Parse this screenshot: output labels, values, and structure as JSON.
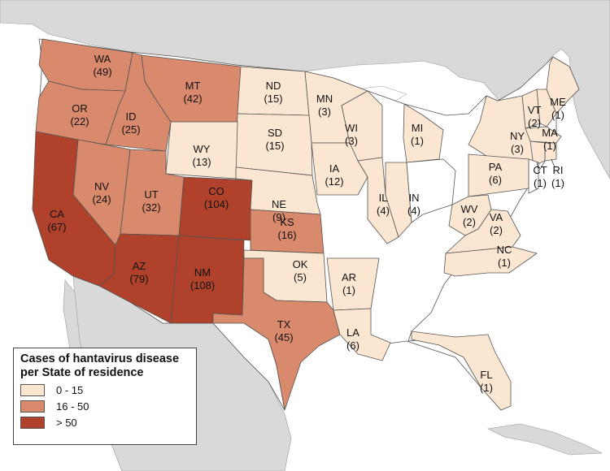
{
  "colors": {
    "low": "#fbe6d2",
    "mid": "#d98a6c",
    "high": "#b0422b",
    "none": "#ffffff",
    "outside": "#d9d9d9",
    "water": "#ffffff"
  },
  "legend": {
    "title_line1": "Cases of hantavirus disease",
    "title_line2": "per State of residence",
    "ranges": [
      {
        "label": "0 - 15",
        "class": "low"
      },
      {
        "label": "16 - 50",
        "class": "mid"
      },
      {
        "label": "> 50",
        "class": "high"
      }
    ]
  },
  "states": [
    {
      "abbr": "WA",
      "cases": "(49)",
      "class": "mid"
    },
    {
      "abbr": "OR",
      "cases": "(22)",
      "class": "mid"
    },
    {
      "abbr": "ID",
      "cases": "(25)",
      "class": "mid"
    },
    {
      "abbr": "MT",
      "cases": "(42)",
      "class": "mid"
    },
    {
      "abbr": "ND",
      "cases": "(15)",
      "class": "low"
    },
    {
      "abbr": "MN",
      "cases": "(3)",
      "class": "low"
    },
    {
      "abbr": "WI",
      "cases": "(3)",
      "class": "low"
    },
    {
      "abbr": "MI",
      "cases": "(1)",
      "class": "low"
    },
    {
      "abbr": "ME",
      "cases": "(1)",
      "class": "low"
    },
    {
      "abbr": "VT",
      "cases": "(2)",
      "class": "low"
    },
    {
      "abbr": "NY",
      "cases": "(3)",
      "class": "low"
    },
    {
      "abbr": "MA",
      "cases": "(1)",
      "class": "low"
    },
    {
      "abbr": "CT",
      "cases": "(1)",
      "class": "low"
    },
    {
      "abbr": "RI",
      "cases": "(1)",
      "class": "low"
    },
    {
      "abbr": "SD",
      "cases": "(15)",
      "class": "low"
    },
    {
      "abbr": "WY",
      "cases": "(13)",
      "class": "low"
    },
    {
      "abbr": "NV",
      "cases": "(24)",
      "class": "mid"
    },
    {
      "abbr": "UT",
      "cases": "(32)",
      "class": "mid"
    },
    {
      "abbr": "CO",
      "cases": "(104)",
      "class": "high"
    },
    {
      "abbr": "NE",
      "cases": "(9)",
      "class": "low"
    },
    {
      "abbr": "IA",
      "cases": "(12)",
      "class": "low"
    },
    {
      "abbr": "IL",
      "cases": "(4)",
      "class": "low"
    },
    {
      "abbr": "IN",
      "cases": "(4)",
      "class": "low"
    },
    {
      "abbr": "PA",
      "cases": "(6)",
      "class": "low"
    },
    {
      "abbr": "WV",
      "cases": "(2)",
      "class": "low"
    },
    {
      "abbr": "VA",
      "cases": "(2)",
      "class": "low"
    },
    {
      "abbr": "NC",
      "cases": "(1)",
      "class": "low"
    },
    {
      "abbr": "CA",
      "cases": "(67)",
      "class": "high"
    },
    {
      "abbr": "AZ",
      "cases": "(79)",
      "class": "high"
    },
    {
      "abbr": "NM",
      "cases": "(108)",
      "class": "high"
    },
    {
      "abbr": "KS",
      "cases": "(16)",
      "class": "mid"
    },
    {
      "abbr": "OK",
      "cases": "(5)",
      "class": "low"
    },
    {
      "abbr": "AR",
      "cases": "(1)",
      "class": "low"
    },
    {
      "abbr": "TX",
      "cases": "(45)",
      "class": "mid"
    },
    {
      "abbr": "LA",
      "cases": "(6)",
      "class": "low"
    },
    {
      "abbr": "FL",
      "cases": "(1)",
      "class": "low"
    }
  ]
}
